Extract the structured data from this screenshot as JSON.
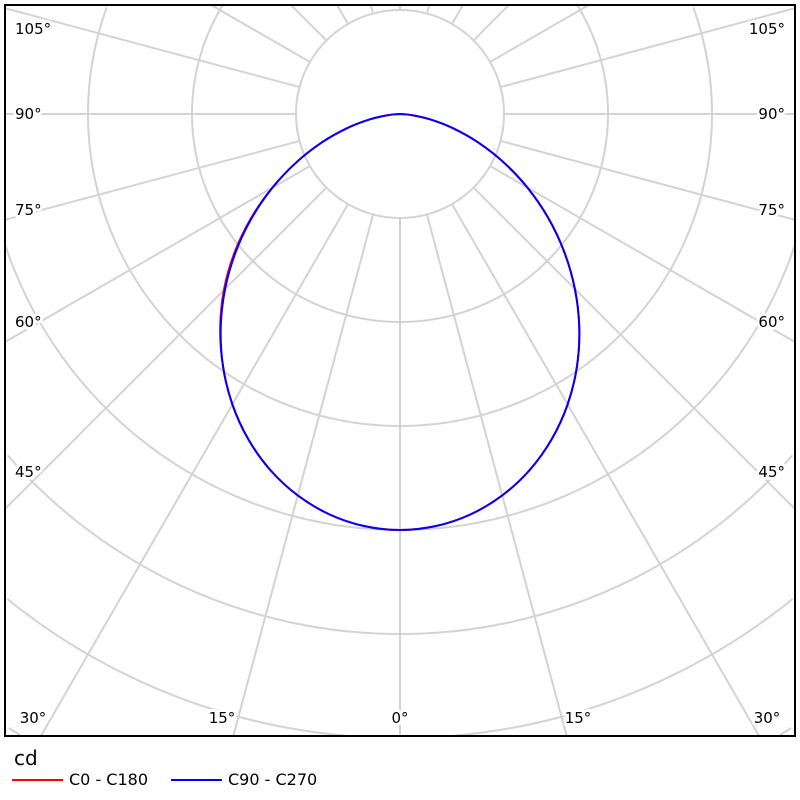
{
  "chart_data": {
    "type": "polar",
    "unit": "cd",
    "angle_labels": {
      "left": [
        "105°",
        "90°",
        "75°",
        "60°",
        "45°"
      ],
      "right": [
        "105°",
        "90°",
        "75°",
        "60°",
        "45°"
      ],
      "bottom": [
        "30°",
        "15°",
        "0°",
        "15°",
        "30°"
      ]
    },
    "angle_grid_step_deg": 15,
    "grid": true,
    "legend_placement": "bottom-left",
    "angles_deg": [
      0,
      5,
      10,
      15,
      20,
      25,
      30,
      35,
      40,
      45,
      50,
      55,
      60,
      65,
      70,
      75,
      80,
      85,
      90
    ],
    "series": [
      {
        "name": "C0 - C180",
        "color": "#ff0000",
        "values": [
          4.0,
          3.977,
          3.909,
          3.797,
          3.644,
          3.451,
          3.224,
          2.966,
          2.69,
          2.395,
          2.08,
          1.75,
          1.42,
          1.099,
          0.8,
          0.527,
          0.289,
          0.103,
          0
        ]
      },
      {
        "name": "C90 - C270",
        "color": "#0000ff",
        "values": [
          4.0,
          3.977,
          3.909,
          3.797,
          3.644,
          3.451,
          3.224,
          2.966,
          2.682,
          2.378,
          2.061,
          1.738,
          1.414,
          1.099,
          0.8,
          0.527,
          0.289,
          0.103,
          0
        ]
      }
    ]
  }
}
